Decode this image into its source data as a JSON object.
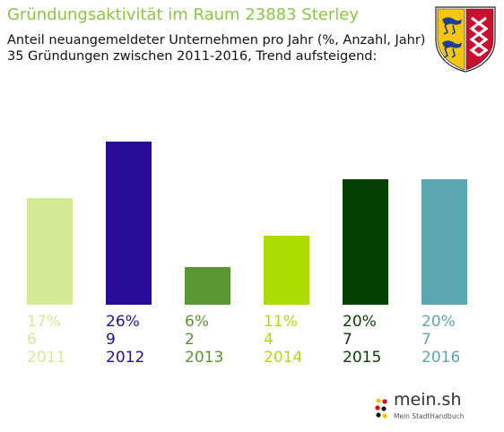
{
  "header": {
    "title": "Gründungsaktivität im Raum 23883 Sterley",
    "subtitle_line1": "Anteil neuangemeldeter Unternehmen pro Jahr (%, Anzahl, Jahr)",
    "subtitle_line2": "35 Gründungen zwischen 2011-2016, Trend aufsteigend:"
  },
  "crest": {
    "icon": "schleswig-holstein-coat-of-arms-icon"
  },
  "logo": {
    "main": "mein.sh",
    "sub": "Mein StadtHandbuch"
  },
  "chart_data": {
    "type": "bar",
    "title": "Gründungsaktivität im Raum 23883 Sterley",
    "categories": [
      "2011",
      "2012",
      "2013",
      "2014",
      "2015",
      "2016"
    ],
    "series": [
      {
        "values": [
          17,
          26,
          6,
          11,
          20,
          20
        ]
      }
    ],
    "counts": [
      6,
      9,
      2,
      4,
      7,
      7
    ],
    "percent_labels": [
      "17%",
      "26%",
      "6%",
      "11%",
      "20%",
      "20%"
    ],
    "colors": [
      "#d3e994",
      "#2a0c9b",
      "#5a9632",
      "#addd00",
      "#043f04",
      "#5ba6b1"
    ],
    "ylim": [
      0,
      26
    ],
    "grid": false,
    "legend": "none"
  }
}
